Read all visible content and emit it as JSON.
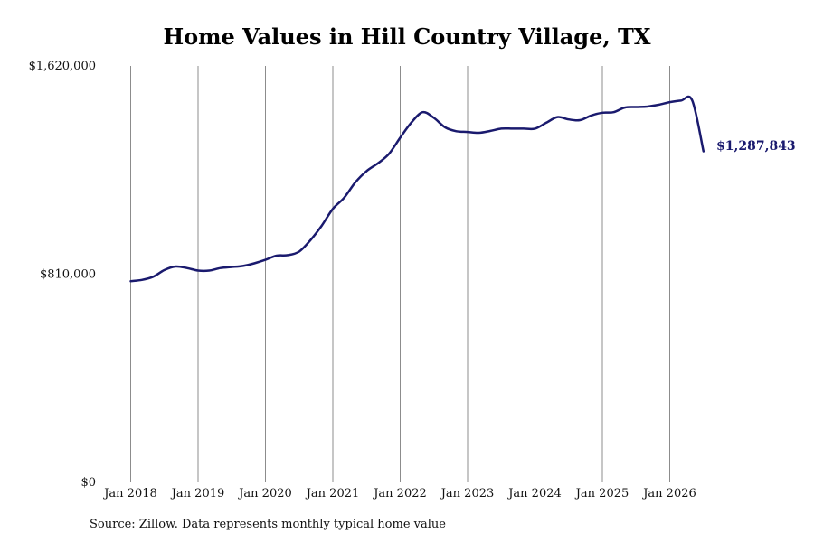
{
  "chart_data": {
    "type": "line",
    "title": "Home Values in Hill Country Village, TX",
    "source": "Source: Zillow. Data represents monthly typical home value",
    "xlabel": "",
    "ylabel": "",
    "ylim": [
      0,
      1620000
    ],
    "yticks": [
      0,
      810000,
      1620000
    ],
    "ytick_labels": [
      "$0",
      "$810,000",
      "$1,620,000"
    ],
    "xticks": [
      "Jan 2018",
      "Jan 2019",
      "Jan 2020",
      "Jan 2021",
      "Jan 2022",
      "Jan 2023",
      "Jan 2024",
      "Jan 2025",
      "Jan 2026"
    ],
    "xlim": [
      "2018-01",
      "2026-07"
    ],
    "grid": "vertical",
    "legend": "none",
    "end_label": "$1,287,843",
    "series": [
      {
        "color": "#1a1a6e",
        "x": [
          "2018-01",
          "2018-03",
          "2018-05",
          "2018-07",
          "2018-09",
          "2018-11",
          "2019-01",
          "2019-03",
          "2019-05",
          "2019-07",
          "2019-09",
          "2019-11",
          "2020-01",
          "2020-03",
          "2020-05",
          "2020-07",
          "2020-09",
          "2020-11",
          "2021-01",
          "2021-03",
          "2021-05",
          "2021-07",
          "2021-09",
          "2021-11",
          "2022-01",
          "2022-03",
          "2022-05",
          "2022-07",
          "2022-09",
          "2022-11",
          "2023-01",
          "2023-03",
          "2023-05",
          "2023-07",
          "2023-09",
          "2023-11",
          "2024-01",
          "2024-03",
          "2024-05",
          "2024-07",
          "2024-09",
          "2024-11",
          "2025-01",
          "2025-03",
          "2025-05",
          "2025-07",
          "2025-09",
          "2025-11",
          "2026-01",
          "2026-03",
          "2026-05",
          "2026-07"
        ],
        "values": [
          783000,
          788000,
          800000,
          826000,
          840000,
          834000,
          824000,
          824000,
          834000,
          838000,
          842000,
          852000,
          866000,
          882000,
          884000,
          898000,
          942000,
          998000,
          1064000,
          1107000,
          1167000,
          1211000,
          1241000,
          1278000,
          1341000,
          1400000,
          1440000,
          1418000,
          1381000,
          1366000,
          1363000,
          1360000,
          1367000,
          1376000,
          1376000,
          1376000,
          1376000,
          1399000,
          1421000,
          1412000,
          1409000,
          1427000,
          1438000,
          1440000,
          1458000,
          1460000,
          1462000,
          1469000,
          1479000,
          1485000,
          1486000,
          1287843
        ]
      }
    ]
  }
}
